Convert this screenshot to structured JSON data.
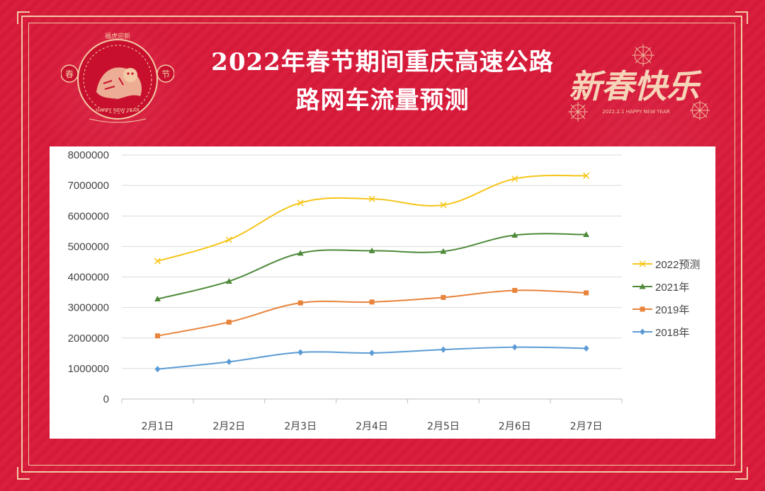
{
  "header": {
    "title_line1": "2022年春节期间重庆高速公路",
    "title_line2": "路网车流量预测"
  },
  "decor": {
    "emblem_text": "福虎迎新",
    "emblem_caption": "HAPPY NEW YEAR",
    "emblem_left": "春",
    "emblem_right": "节",
    "greeting_text": "新春快乐",
    "greeting_caption": "2022.2.1 HAPPY NEW YEAR"
  },
  "chart_data": {
    "type": "line",
    "categories": [
      "2月1日",
      "2月2日",
      "2月3日",
      "2月4日",
      "2月5日",
      "2月6日",
      "2月7日"
    ],
    "ylim": [
      0,
      8000000
    ],
    "yticks": [
      0,
      1000000,
      2000000,
      3000000,
      4000000,
      5000000,
      6000000,
      7000000,
      8000000
    ],
    "grid": true,
    "legend_position": "right",
    "series": [
      {
        "name": "2022预测",
        "color": "#f5c518",
        "marker": "x",
        "values": [
          4520000,
          5220000,
          6430000,
          6560000,
          6360000,
          7220000,
          7320000
        ]
      },
      {
        "name": "2021年",
        "color": "#4e8a3a",
        "marker": "triangle",
        "values": [
          3280000,
          3860000,
          4780000,
          4860000,
          4840000,
          5370000,
          5390000
        ]
      },
      {
        "name": "2019年",
        "color": "#e8833a",
        "marker": "square",
        "values": [
          2070000,
          2520000,
          3150000,
          3180000,
          3330000,
          3560000,
          3480000
        ]
      },
      {
        "name": "2018年",
        "color": "#5b9bd5",
        "marker": "diamond",
        "values": [
          980000,
          1220000,
          1530000,
          1510000,
          1620000,
          1700000,
          1660000
        ]
      }
    ]
  }
}
